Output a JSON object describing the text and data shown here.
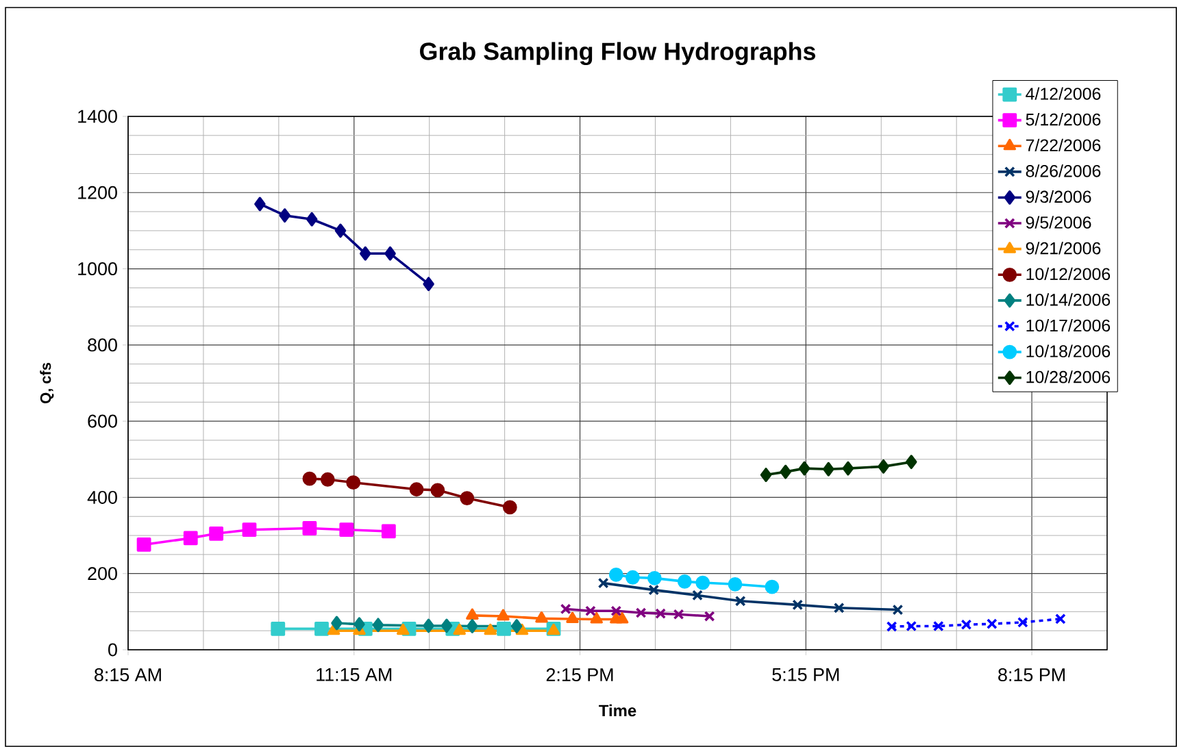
{
  "chart_data": {
    "type": "line",
    "title": "Grab Sampling Flow Hydrographs",
    "xlabel": "Time",
    "ylabel": "Q, cfs",
    "xlim": [
      8.25,
      21.25
    ],
    "ylim": [
      0,
      1400
    ],
    "xticks": [
      {
        "value": 8.25,
        "label": "8:15 AM"
      },
      {
        "value": 11.25,
        "label": "11:15 AM"
      },
      {
        "value": 14.25,
        "label": "2:15 PM"
      },
      {
        "value": 17.25,
        "label": "5:15 PM"
      },
      {
        "value": 20.25,
        "label": "8:15 PM"
      }
    ],
    "yticks": [
      0,
      200,
      400,
      600,
      800,
      1000,
      1200,
      1400
    ],
    "grid": true,
    "legend": "top right",
    "series": [
      {
        "name": "4/12/2006",
        "color": "#33cccc",
        "marker": "square",
        "x": [
          10.24,
          10.82,
          11.4,
          11.98,
          12.56,
          13.24,
          13.9
        ],
        "values": [
          55,
          55,
          55,
          55,
          55,
          55,
          55
        ]
      },
      {
        "name": "5/12/2006",
        "color": "#ff00ff",
        "marker": "square",
        "x": [
          8.46,
          9.08,
          9.42,
          9.86,
          10.66,
          11.15,
          11.71
        ],
        "values": [
          276,
          293,
          305,
          315,
          319,
          315,
          311
        ]
      },
      {
        "name": "7/22/2006",
        "color": "#ff6600",
        "marker": "triangle",
        "x": [
          12.82,
          13.23,
          13.74,
          14.15,
          14.47,
          14.73,
          14.81
        ],
        "values": [
          90,
          88,
          82,
          81,
          80,
          80,
          80
        ]
      },
      {
        "name": "8/26/2006",
        "color": "#003366",
        "marker": "cross",
        "x": [
          14.56,
          15.23,
          15.81,
          16.38,
          17.14,
          17.69,
          18.47
        ],
        "values": [
          175,
          157,
          143,
          128,
          118,
          110,
          105
        ]
      },
      {
        "name": "9/3/2006",
        "color": "#000080",
        "marker": "diamond",
        "x": [
          10.0,
          10.33,
          10.69,
          11.07,
          11.4,
          11.73,
          12.24
        ],
        "values": [
          1170,
          1140,
          1130,
          1100,
          1040,
          1040,
          960
        ]
      },
      {
        "name": "9/5/2006",
        "color": "#800080",
        "marker": "cross",
        "x": [
          14.06,
          14.39,
          14.73,
          15.06,
          15.32,
          15.56,
          15.97
        ],
        "values": [
          107,
          102,
          102,
          97,
          95,
          93,
          88
        ]
      },
      {
        "name": "9/21/2006",
        "color": "#ff9900",
        "marker": "triangle",
        "x": [
          10.98,
          11.32,
          11.9,
          12.65,
          13.06,
          13.48,
          13.9
        ],
        "values": [
          50,
          50,
          50,
          50,
          50,
          50,
          50
        ]
      },
      {
        "name": "10/12/2006",
        "color": "#800000",
        "marker": "circle",
        "x": [
          10.66,
          10.9,
          11.24,
          12.08,
          12.36,
          12.75,
          13.32
        ],
        "values": [
          449,
          447,
          439,
          421,
          419,
          398,
          374
        ]
      },
      {
        "name": "10/14/2006",
        "color": "#008080",
        "marker": "diamond",
        "x": [
          11.02,
          11.32,
          11.57,
          12.24,
          12.48,
          12.82,
          13.41
        ],
        "values": [
          70,
          67,
          65,
          63,
          63,
          62,
          62
        ]
      },
      {
        "name": "10/17/2006",
        "color": "#0000ff",
        "marker": "cross",
        "line_style": "dashed",
        "x": [
          18.39,
          18.65,
          19.01,
          19.38,
          19.72,
          20.13,
          20.63
        ],
        "values": [
          61,
          62,
          62,
          66,
          68,
          72,
          81
        ]
      },
      {
        "name": "10/18/2006",
        "color": "#00ccff",
        "marker": "circle",
        "x": [
          14.73,
          14.95,
          15.24,
          15.64,
          15.88,
          16.31,
          16.8
        ],
        "values": [
          197,
          190,
          188,
          179,
          176,
          172,
          165
        ]
      },
      {
        "name": "10/28/2006",
        "color": "#003300",
        "marker": "diamond",
        "x": [
          16.72,
          16.98,
          17.23,
          17.55,
          17.81,
          18.28,
          18.65
        ],
        "values": [
          459,
          467,
          476,
          474,
          476,
          481,
          493
        ]
      }
    ]
  }
}
